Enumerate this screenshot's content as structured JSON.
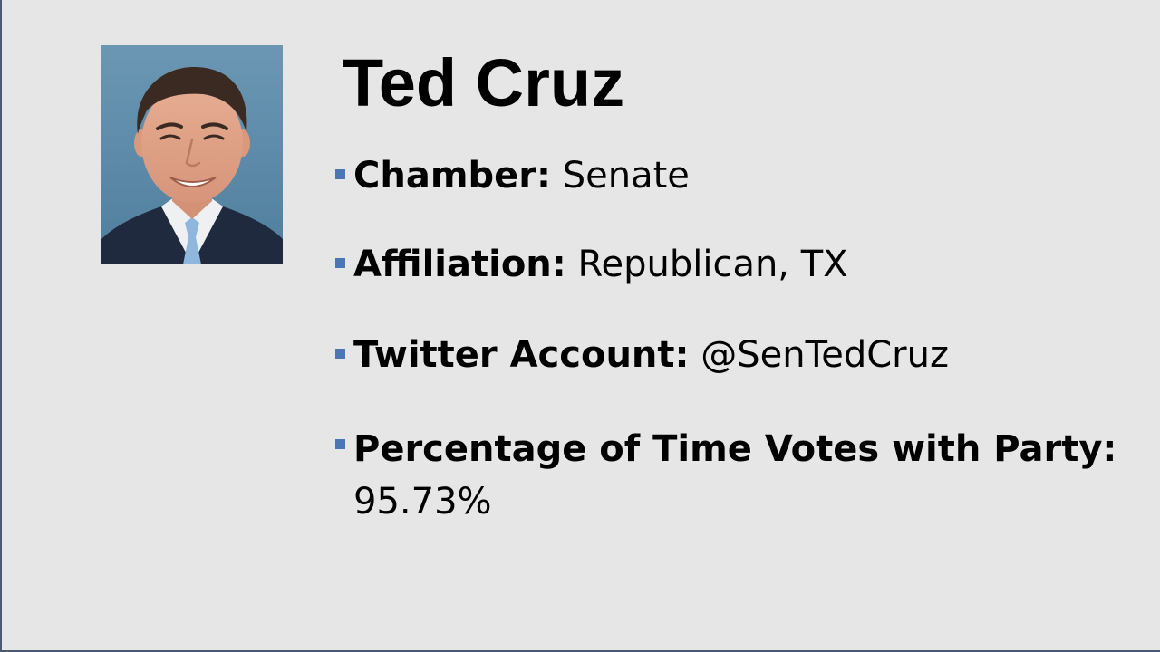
{
  "title": "Ted Cruz",
  "portrait_alt": "portrait photo",
  "colors": {
    "background": "#e6e6e6",
    "bullet": "#4a76b5",
    "border": "#4a5a73"
  },
  "bullets": [
    {
      "label": "Chamber:",
      "value": "Senate"
    },
    {
      "label": "Affiliation:",
      "value": "Republican, TX"
    },
    {
      "label": "Twitter Account:",
      "value": "@SenTedCruz"
    },
    {
      "label": "Percentage of Time Votes with Party:",
      "value": "95.73%"
    }
  ]
}
